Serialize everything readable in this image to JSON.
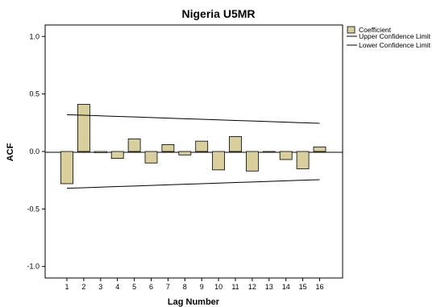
{
  "chart_data": {
    "type": "bar",
    "title": "Nigeria U5MR",
    "xlabel": "Lag Number",
    "ylabel": "ACF",
    "ylim": [
      -1.1,
      1.1
    ],
    "yticks": [
      "1.0",
      "0.5",
      "0.0",
      "-0.5",
      "-1.0"
    ],
    "ytick_values": [
      1.0,
      0.5,
      0.0,
      -0.5,
      -1.0
    ],
    "categories": [
      "1",
      "2",
      "3",
      "4",
      "5",
      "6",
      "7",
      "8",
      "9",
      "10",
      "11",
      "12",
      "13",
      "14",
      "15",
      "16"
    ],
    "series": [
      {
        "name": "Coefficient",
        "values": [
          -0.28,
          0.41,
          -0.01,
          -0.06,
          0.11,
          -0.1,
          0.06,
          -0.03,
          0.09,
          -0.16,
          0.13,
          -0.17,
          0.0,
          -0.07,
          -0.15,
          0.04
        ],
        "color": "#d8cf9c"
      }
    ],
    "upper_confidence_limit": {
      "name": "Upper Confidence Limit",
      "values": [
        0.32,
        0.315,
        0.31,
        0.305,
        0.3,
        0.295,
        0.29,
        0.285,
        0.28,
        0.275,
        0.27,
        0.265,
        0.26,
        0.255,
        0.25,
        0.245
      ]
    },
    "lower_confidence_limit": {
      "name": "Lower Confidence Limit",
      "values": [
        -0.32,
        -0.315,
        -0.31,
        -0.305,
        -0.3,
        -0.295,
        -0.29,
        -0.285,
        -0.28,
        -0.275,
        -0.27,
        -0.265,
        -0.26,
        -0.255,
        -0.25,
        -0.245
      ]
    },
    "legend_position": "top-right",
    "grid": false
  }
}
